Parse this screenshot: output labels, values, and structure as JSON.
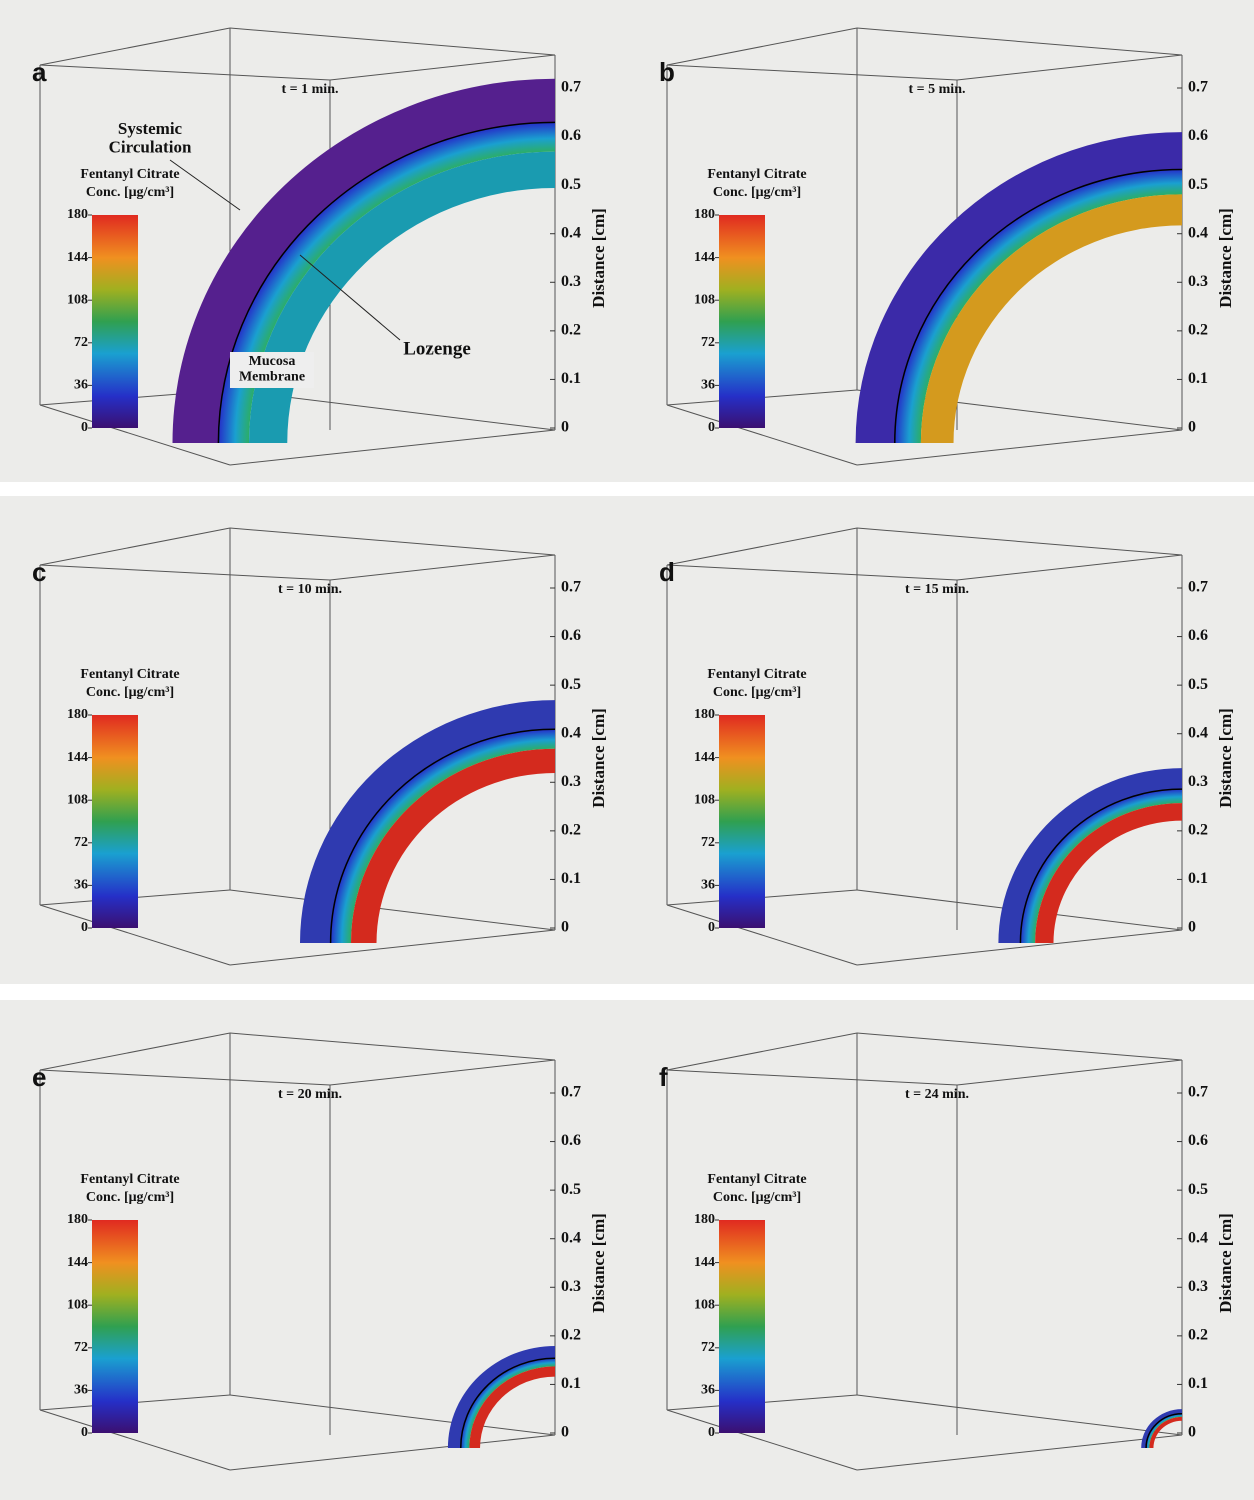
{
  "chart_data": [
    {
      "type": "surface",
      "panel": "a",
      "title": "t = 1 min.",
      "colorbar_label": [
        "Fentanyl Citrate",
        "Conc. [μg/cm³]"
      ],
      "colorbar_ticks": [
        0,
        36,
        72,
        108,
        144,
        180
      ],
      "clim": [
        0,
        180
      ],
      "zlabel": "Distance [cm]",
      "zlim": [
        0,
        0.7
      ],
      "zticks": [
        0,
        0.1,
        0.2,
        0.3,
        0.4,
        0.5,
        0.6,
        0.7
      ],
      "values": [
        0.75
      ],
      "color": "#1a9bb0",
      "outer_color": "#55208e",
      "annotations": [
        "Systemic Circulation",
        "Lozenge",
        "Mucosa Membrane"
      ]
    },
    {
      "type": "surface",
      "panel": "b",
      "title": "t = 5 min.",
      "colorbar_label": [
        "Fentanyl Citrate",
        "Conc. [μg/cm³]"
      ],
      "colorbar_ticks": [
        0,
        36,
        72,
        108,
        144,
        180
      ],
      "clim": [
        0,
        180
      ],
      "zlabel": "Distance [cm]",
      "zlim": [
        0,
        0.7
      ],
      "zticks": [
        0,
        0.1,
        0.2,
        0.3,
        0.4,
        0.5,
        0.6,
        0.7
      ],
      "values": [
        0.64
      ],
      "color": "#d49a1e",
      "outer_color": "#3b2aa8"
    },
    {
      "type": "surface",
      "panel": "c",
      "title": "t = 10 min.",
      "colorbar_label": [
        "Fentanyl Citrate",
        "Conc. [μg/cm³]"
      ],
      "colorbar_ticks": [
        0,
        36,
        72,
        108,
        144,
        180
      ],
      "clim": [
        0,
        180
      ],
      "zlabel": "Distance [cm]",
      "zlim": [
        0,
        0.7
      ],
      "zticks": [
        0,
        0.1,
        0.2,
        0.3,
        0.4,
        0.5,
        0.6,
        0.7
      ],
      "values": [
        0.5
      ],
      "color": "#d42a1e",
      "outer_color": "#2f3ab0"
    },
    {
      "type": "surface",
      "panel": "d",
      "title": "t = 15 min.",
      "colorbar_label": [
        "Fentanyl Citrate",
        "Conc. [μg/cm³]"
      ],
      "colorbar_ticks": [
        0,
        36,
        72,
        108,
        144,
        180
      ],
      "clim": [
        0,
        180
      ],
      "zlabel": "Distance [cm]",
      "zlim": [
        0,
        0.7
      ],
      "zticks": [
        0,
        0.1,
        0.2,
        0.3,
        0.4,
        0.5,
        0.6,
        0.7
      ],
      "values": [
        0.36
      ],
      "color": "#d42a1e",
      "outer_color": "#2f3ab0"
    },
    {
      "type": "surface",
      "panel": "e",
      "title": "t = 20 min.",
      "colorbar_label": [
        "Fentanyl Citrate",
        "Conc. [μg/cm³]"
      ],
      "colorbar_ticks": [
        0,
        36,
        72,
        108,
        144,
        180
      ],
      "clim": [
        0,
        180
      ],
      "zlabel": "Distance [cm]",
      "zlim": [
        0,
        0.7
      ],
      "zticks": [
        0,
        0.1,
        0.2,
        0.3,
        0.4,
        0.5,
        0.6,
        0.7
      ],
      "values": [
        0.21
      ],
      "color": "#d42a1e",
      "outer_color": "#2f3ab0"
    },
    {
      "type": "surface",
      "panel": "f",
      "title": "t = 24 min.",
      "colorbar_label": [
        "Fentanyl Citrate",
        "Conc. [μg/cm³]"
      ],
      "colorbar_ticks": [
        0,
        36,
        72,
        108,
        144,
        180
      ],
      "clim": [
        0,
        180
      ],
      "zlabel": "Distance [cm]",
      "zlim": [
        0,
        0.7
      ],
      "zticks": [
        0,
        0.1,
        0.2,
        0.3,
        0.4,
        0.5,
        0.6,
        0.7
      ],
      "values": [
        0.08
      ],
      "color": "#d42a1e",
      "outer_color": "#2f3ab0"
    }
  ]
}
